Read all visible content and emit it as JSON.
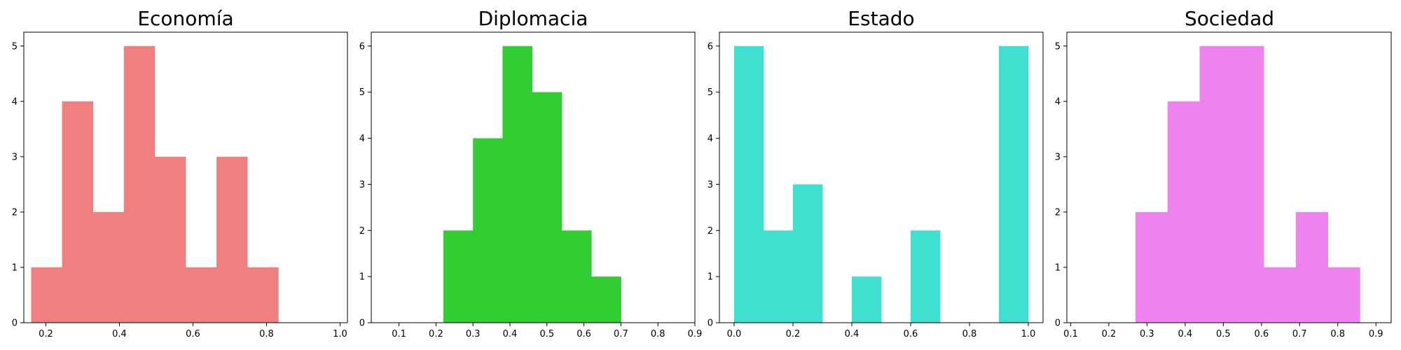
{
  "chart_data": [
    {
      "type": "bar",
      "title": "Economía",
      "color": "#f08080",
      "xlim": [
        0.14,
        1.02
      ],
      "ylim": [
        0,
        5.25
      ],
      "xticks": [
        0.2,
        0.4,
        0.6,
        0.8,
        1.0
      ],
      "xtick_labels": [
        "0.2",
        "0.4",
        "0.6",
        "0.8",
        "1.0"
      ],
      "yticks": [
        0,
        1,
        2,
        3,
        4,
        5
      ],
      "bins": [
        {
          "x0": 0.16,
          "x1": 0.244,
          "count": 1
        },
        {
          "x0": 0.244,
          "x1": 0.328,
          "count": 4
        },
        {
          "x0": 0.328,
          "x1": 0.412,
          "count": 2
        },
        {
          "x0": 0.412,
          "x1": 0.496,
          "count": 5
        },
        {
          "x0": 0.496,
          "x1": 0.58,
          "count": 3
        },
        {
          "x0": 0.58,
          "x1": 0.664,
          "count": 1
        },
        {
          "x0": 0.664,
          "x1": 0.748,
          "count": 3
        },
        {
          "x0": 0.748,
          "x1": 0.832,
          "count": 1
        }
      ]
    },
    {
      "type": "bar",
      "title": "Diplomacia",
      "color": "#32cd32",
      "xlim": [
        0.025,
        0.9
      ],
      "ylim": [
        0,
        6.3
      ],
      "xticks": [
        0.1,
        0.2,
        0.3,
        0.4,
        0.5,
        0.6,
        0.7,
        0.8,
        0.9
      ],
      "xtick_labels": [
        "0.1",
        "0.2",
        "0.3",
        "0.4",
        "0.5",
        "0.6",
        "0.7",
        "0.8",
        "0.9"
      ],
      "yticks": [
        0,
        1,
        2,
        3,
        4,
        5,
        6
      ],
      "bins": [
        {
          "x0": 0.22,
          "x1": 0.3,
          "count": 2
        },
        {
          "x0": 0.3,
          "x1": 0.38,
          "count": 4
        },
        {
          "x0": 0.38,
          "x1": 0.46,
          "count": 6
        },
        {
          "x0": 0.46,
          "x1": 0.54,
          "count": 5
        },
        {
          "x0": 0.54,
          "x1": 0.62,
          "count": 2
        },
        {
          "x0": 0.62,
          "x1": 0.7,
          "count": 1
        }
      ]
    },
    {
      "type": "bar",
      "title": "Estado",
      "color": "#40e0d0",
      "xlim": [
        -0.05,
        1.05
      ],
      "ylim": [
        0,
        6.3
      ],
      "xticks": [
        0.0,
        0.2,
        0.4,
        0.6,
        0.8,
        1.0
      ],
      "xtick_labels": [
        "0.0",
        "0.2",
        "0.4",
        "0.6",
        "0.8",
        "1.0"
      ],
      "yticks": [
        0,
        1,
        2,
        3,
        4,
        5,
        6
      ],
      "bins": [
        {
          "x0": 0.0,
          "x1": 0.1,
          "count": 6
        },
        {
          "x0": 0.1,
          "x1": 0.2,
          "count": 2
        },
        {
          "x0": 0.2,
          "x1": 0.3,
          "count": 3
        },
        {
          "x0": 0.3,
          "x1": 0.4,
          "count": 0
        },
        {
          "x0": 0.4,
          "x1": 0.5,
          "count": 1
        },
        {
          "x0": 0.5,
          "x1": 0.6,
          "count": 0
        },
        {
          "x0": 0.6,
          "x1": 0.7,
          "count": 2
        },
        {
          "x0": 0.7,
          "x1": 0.8,
          "count": 0
        },
        {
          "x0": 0.8,
          "x1": 0.9,
          "count": 0
        },
        {
          "x0": 0.9,
          "x1": 1.0,
          "count": 6
        }
      ]
    },
    {
      "type": "bar",
      "title": "Sociedad",
      "color": "#ee82ee",
      "xlim": [
        0.09,
        0.94
      ],
      "ylim": [
        0,
        5.25
      ],
      "xticks": [
        0.1,
        0.2,
        0.3,
        0.4,
        0.5,
        0.6,
        0.7,
        0.8,
        0.9
      ],
      "xtick_labels": [
        "0.1",
        "0.2",
        "0.3",
        "0.4",
        "0.5",
        "0.6",
        "0.7",
        "0.8",
        "0.9"
      ],
      "yticks": [
        0,
        1,
        2,
        3,
        4,
        5
      ],
      "bins": [
        {
          "x0": 0.27,
          "x1": 0.354,
          "count": 2
        },
        {
          "x0": 0.354,
          "x1": 0.438,
          "count": 4
        },
        {
          "x0": 0.438,
          "x1": 0.522,
          "count": 5
        },
        {
          "x0": 0.522,
          "x1": 0.606,
          "count": 5
        },
        {
          "x0": 0.606,
          "x1": 0.69,
          "count": 1
        },
        {
          "x0": 0.69,
          "x1": 0.774,
          "count": 2
        },
        {
          "x0": 0.774,
          "x1": 0.858,
          "count": 1
        }
      ]
    }
  ]
}
